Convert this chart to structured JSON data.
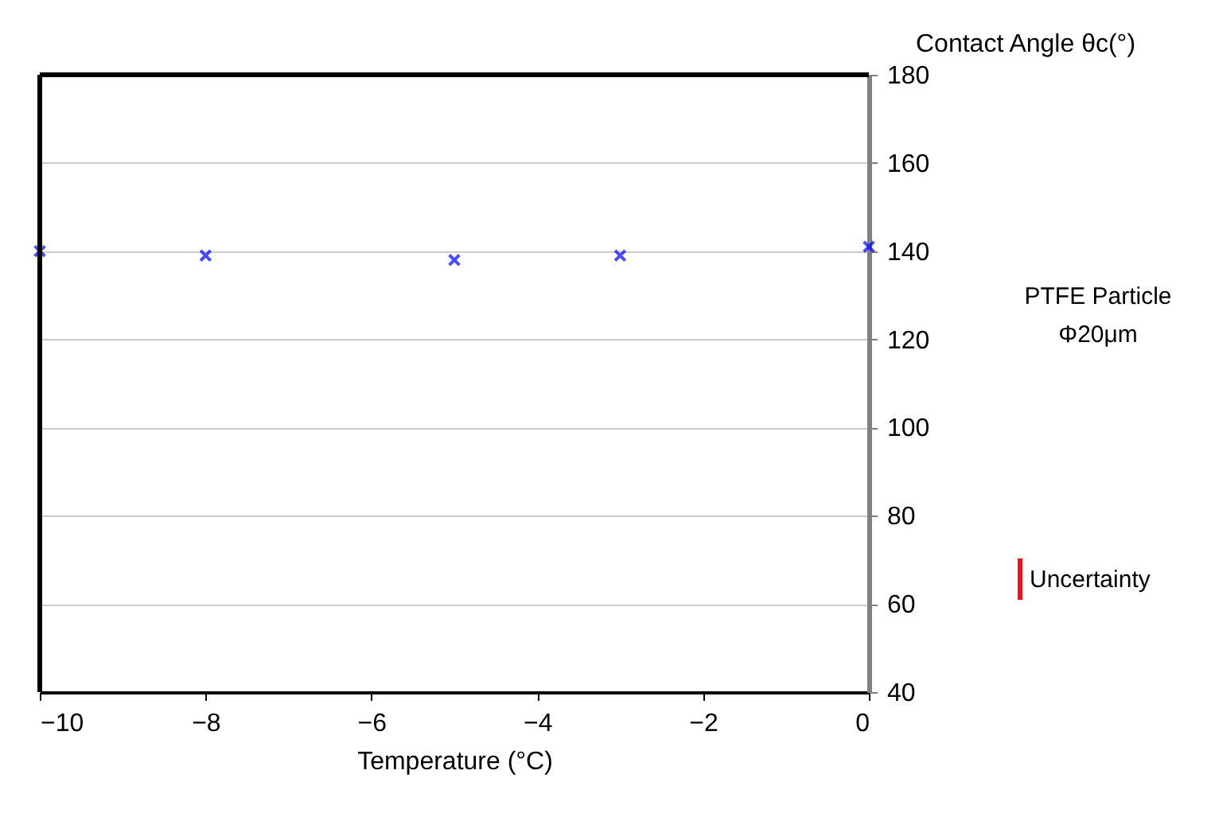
{
  "chart_data": {
    "type": "scatter",
    "xlabel": "Temperature (°C)",
    "ylabel": "Contact  Angle  θc(°)",
    "x": [
      -10,
      -8,
      -5,
      -3,
      0
    ],
    "series": [
      {
        "color": "#0000ff",
        "values": [
          140,
          139,
          138,
          139,
          141
        ]
      }
    ],
    "xlim": [
      -10,
      0
    ],
    "xticks": [
      -10,
      -8,
      -6,
      -4,
      -2,
      0
    ],
    "ylim": [
      40,
      180
    ],
    "yticks": [
      40,
      60,
      80,
      100,
      120,
      140,
      160,
      180
    ],
    "grid": "y",
    "marker": "cross",
    "annotations": [
      "PTFE Particle",
      "Φ20μm",
      "Uncertainty"
    ]
  }
}
